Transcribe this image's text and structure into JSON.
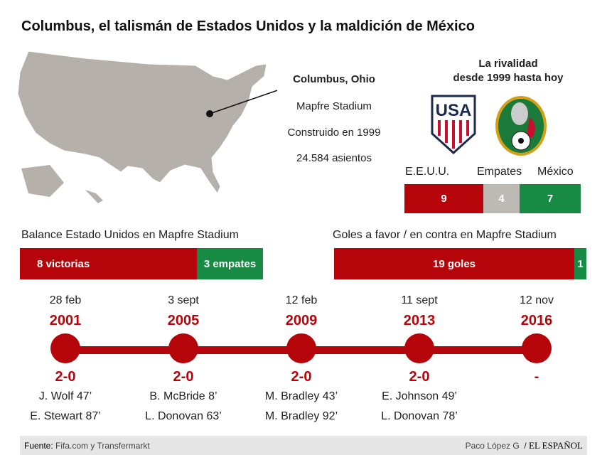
{
  "title": "Columbus, el talismán de Estados Unidos y la maldición de México",
  "stadium": {
    "city": "Columbus, Ohio",
    "name": "Mapfre Stadium",
    "built": "Construido en 1999",
    "seats": "24.584 asientos"
  },
  "rivalry": {
    "title1": "La rivalidad",
    "title2": "desde 1999 hasta hoy",
    "labels": [
      "E.E.U.U.",
      "Empates",
      "México"
    ],
    "values": [
      "9",
      "4",
      "7"
    ]
  },
  "balance": {
    "title": "Balance Estado Unidos en Mapfre Stadium",
    "wins": "8 victorias",
    "draws": "3 empates"
  },
  "goals": {
    "title": "Goles a favor / en contra en Mapfre Stadium",
    "for": "19 goles",
    "against": "1"
  },
  "matches": [
    {
      "date": "28 feb",
      "year": "2001",
      "score": "2-0",
      "s1": "J. Wolf 47’",
      "s2": "E. Stewart 87’"
    },
    {
      "date": "3 sept",
      "year": "2005",
      "score": "2-0",
      "s1": "B. McBride 8’",
      "s2": "L. Donovan 63’"
    },
    {
      "date": "12 feb",
      "year": "2009",
      "score": "2-0",
      "s1": "M. Bradley 43’",
      "s2": "M. Bradley 92’"
    },
    {
      "date": "11 sept",
      "year": "2013",
      "score": "2-0",
      "s1": "E. Johnson 49’",
      "s2": "L. Donovan 78’"
    },
    {
      "date": "12 nov",
      "year": "2016",
      "score": "-",
      "s1": "",
      "s2": ""
    }
  ],
  "footer": {
    "source_label": "Fuente:",
    "source": "Fifa.com y Transfermarkt",
    "author": "Paco López G",
    "logo": "EL ESPAÑOL"
  },
  "colors": {
    "red": "#b5050b",
    "green": "#178a43",
    "gray": "#bdb9b4",
    "map": "#b5b1aa"
  }
}
